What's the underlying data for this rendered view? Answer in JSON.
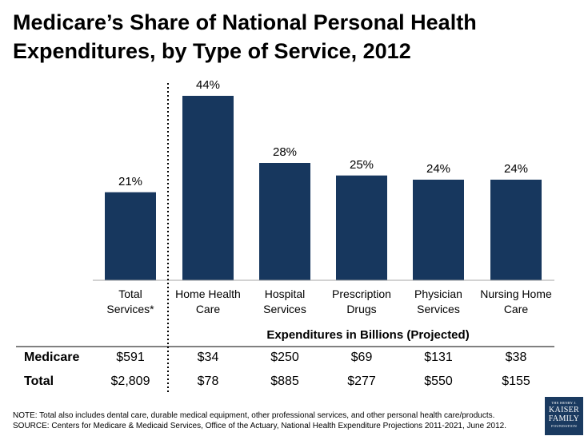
{
  "title_line1": "Medicare’s Share of National Personal Health",
  "title_line2": "Expenditures, by Type of Service, 2012",
  "colors": {
    "bar": "#17375e",
    "logo_bg": "#1a3a60"
  },
  "chart_data": {
    "type": "bar",
    "title": "Medicare’s Share of National Personal Health Expenditures, by Type of Service, 2012",
    "categories": [
      [
        "Total",
        "Services*"
      ],
      [
        "Home Health",
        "Care"
      ],
      [
        "Hospital",
        "Services"
      ],
      [
        "Prescription",
        "Drugs"
      ],
      [
        "Physician",
        "Services"
      ],
      [
        "Nursing Home",
        "Care"
      ]
    ],
    "values": [
      21,
      44,
      28,
      25,
      24,
      24
    ],
    "value_labels": [
      "21%",
      "44%",
      "28%",
      "25%",
      "24%",
      "24%"
    ],
    "ylim": [
      0,
      50
    ],
    "grid": false
  },
  "table": {
    "caption": "Expenditures in Billions (Projected)",
    "rows": [
      {
        "label": "Medicare",
        "values": [
          "$591",
          "$34",
          "$250",
          "$69",
          "$131",
          "$38"
        ]
      },
      {
        "label": "Total",
        "values": [
          "$2,809",
          "$78",
          "$885",
          "$277",
          "$550",
          "$155"
        ]
      }
    ]
  },
  "notes": {
    "note": "NOTE: Total also includes dental care, durable medical equipment, other professional services, and other personal health care/products.",
    "source": "SOURCE: Centers for Medicare & Medicaid Services, Office of the Actuary, National Health Expenditure Projections 2011-2021, June 2012."
  },
  "logo": {
    "line1": "THE HENRY J.",
    "line2": "KAISER",
    "line3": "FAMILY",
    "line4": "FOUNDATION"
  }
}
